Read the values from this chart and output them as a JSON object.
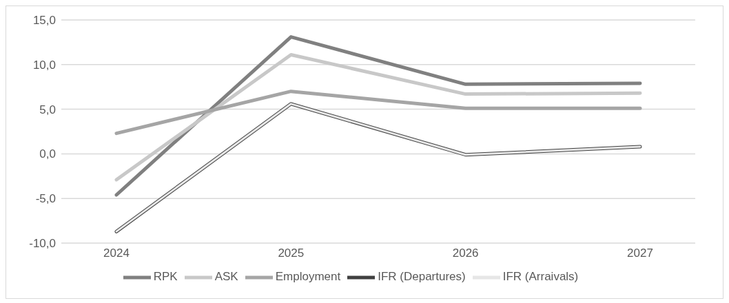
{
  "chart_data": {
    "type": "line",
    "categories": [
      "2024",
      "2025",
      "2026",
      "2027"
    ],
    "series": [
      {
        "name": "RPK",
        "color": "#808080",
        "values": [
          -4.6,
          13.1,
          7.8,
          7.9
        ]
      },
      {
        "name": "ASK",
        "color": "#c8c8c8",
        "values": [
          -2.9,
          11.1,
          6.7,
          6.8
        ]
      },
      {
        "name": "Employment",
        "color": "#a5a5a5",
        "values": [
          2.3,
          7.0,
          5.1,
          5.1
        ]
      },
      {
        "name": "IFR (Departures)",
        "color": "#404040",
        "values": [
          -8.7,
          5.6,
          -0.1,
          0.8
        ]
      },
      {
        "name": "IFR (Arraivals)",
        "color": "#e6e6e6",
        "values": [
          -8.7,
          5.6,
          -0.1,
          0.8
        ]
      }
    ],
    "ylim": [
      -10,
      15
    ],
    "yticks": [
      {
        "value": -10,
        "label": "-10,0"
      },
      {
        "value": -5,
        "label": "-5,0"
      },
      {
        "value": 0,
        "label": "0,0"
      },
      {
        "value": 5,
        "label": "5,0"
      },
      {
        "value": 10,
        "label": "10,0"
      },
      {
        "value": 15,
        "label": "15,0"
      }
    ],
    "grid": "y",
    "legend": "bottom",
    "marker": "none",
    "line_style": "solid"
  }
}
